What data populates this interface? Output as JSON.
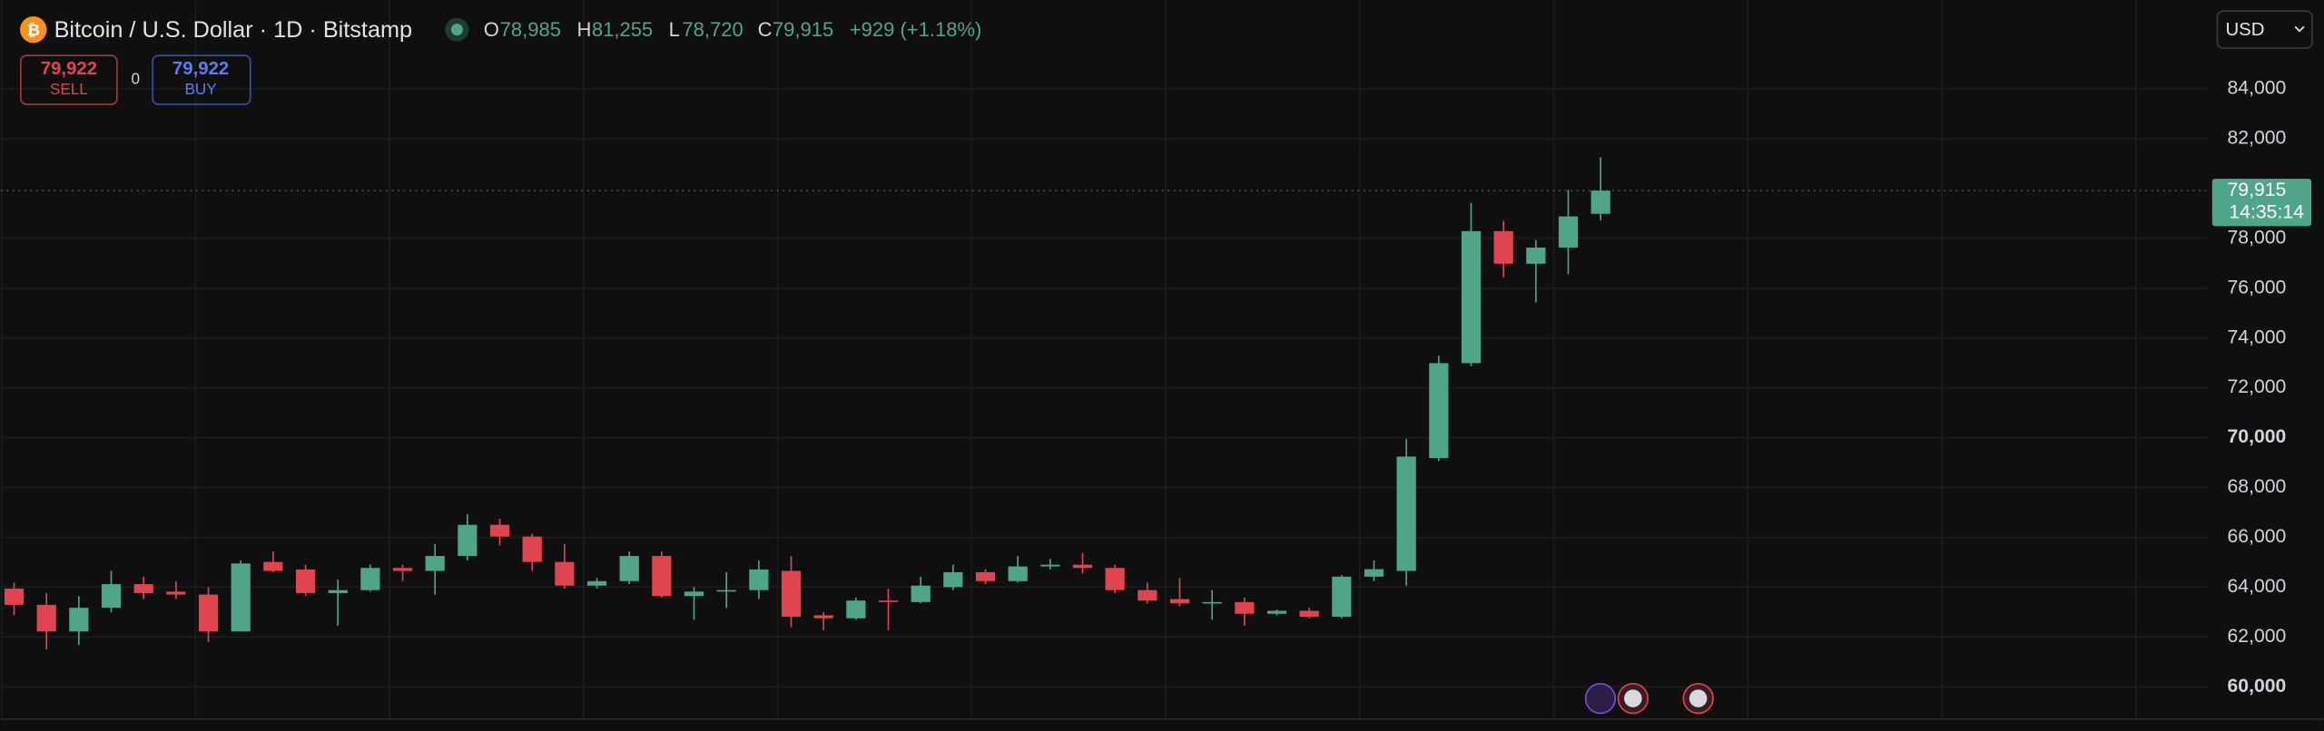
{
  "header": {
    "symbol": "Bitcoin / U.S. Dollar · 1D · Bitstamp",
    "o_label": "O",
    "open": "78,985",
    "h_label": "H",
    "high": "81,255",
    "l_label": "L",
    "low": "78,720",
    "c_label": "C",
    "close": "79,915",
    "change": "+929 (+1.18%)"
  },
  "trade": {
    "sell_price": "79,922",
    "sell": "SELL",
    "spread": "0",
    "buy_price": "79,922",
    "buy": "BUY"
  },
  "currency": "USD",
  "price_label": {
    "price": "79,915",
    "countdown": "14:35:14"
  },
  "chart_data": {
    "type": "candlestick",
    "up_color": "#4fa58a",
    "down_color": "#e0454f",
    "grid": true,
    "ylim": [
      58700,
      87270
    ],
    "yticks": [
      {
        "value": 60000,
        "label": "60,000"
      },
      {
        "value": 62000,
        "label": "62,000"
      },
      {
        "value": 64000,
        "label": "64,000"
      },
      {
        "value": 66000,
        "label": "66,000"
      },
      {
        "value": 68000,
        "label": "68,000"
      },
      {
        "value": 70000,
        "label": "70,000"
      },
      {
        "value": 72000,
        "label": "72,000"
      },
      {
        "value": 74000,
        "label": "74,000"
      },
      {
        "value": 76000,
        "label": "76,000"
      },
      {
        "value": 78000,
        "label": "78,000"
      },
      {
        "value": 82000,
        "label": "82,000"
      },
      {
        "value": 84000,
        "label": "84,000"
      }
    ],
    "open": [
      63940,
      63290,
      62220,
      63170,
      64120,
      63820,
      63700,
      62220,
      65010,
      64710,
      63760,
      63880,
      64770,
      64650,
      65250,
      66500,
      66030,
      65010,
      64060,
      64240,
      65250,
      63640,
      63820,
      63880,
      64650,
      62870,
      62750,
      63460,
      63400,
      64000,
      64600,
      64240,
      64830,
      64900,
      64770,
      63880,
      63520,
      63350,
      63400,
      62930,
      63050,
      62810,
      64420,
      64650,
      69180,
      72990,
      78290,
      76980,
      77630,
      78985
    ],
    "high": [
      64180,
      63760,
      63640,
      64650,
      64420,
      64240,
      64000,
      65070,
      65430,
      64900,
      64300,
      64900,
      64900,
      65730,
      66920,
      66740,
      66140,
      65730,
      64360,
      65430,
      65430,
      64000,
      64600,
      65070,
      65250,
      62990,
      63580,
      63940,
      64420,
      64900,
      64720,
      65250,
      65130,
      65370,
      64900,
      64180,
      64360,
      63880,
      63580,
      63110,
      63170,
      64480,
      65070,
      69950,
      73290,
      79420,
      78700,
      77930,
      79950,
      81255
    ],
    "low": [
      62870,
      61500,
      61680,
      62990,
      63520,
      63520,
      61800,
      62220,
      64600,
      63640,
      62450,
      63820,
      64240,
      63700,
      65070,
      65670,
      64650,
      63940,
      63940,
      64120,
      63580,
      62690,
      63170,
      63520,
      62390,
      62270,
      62690,
      62270,
      63350,
      63880,
      64120,
      64180,
      64710,
      64540,
      63760,
      63350,
      63230,
      62690,
      62450,
      62870,
      62750,
      62750,
      64240,
      64060,
      69060,
      72870,
      76440,
      75430,
      76560,
      78720
    ],
    "close": [
      63290,
      62220,
      63170,
      64120,
      63760,
      63700,
      62220,
      64950,
      64650,
      63760,
      63880,
      64770,
      64650,
      65250,
      66500,
      66030,
      65010,
      64060,
      64240,
      65250,
      63640,
      63820,
      63880,
      64710,
      62810,
      62750,
      63460,
      63400,
      64060,
      64600,
      64240,
      64830,
      64900,
      64770,
      63880,
      63460,
      63350,
      63400,
      62930,
      63050,
      62810,
      64420,
      64720,
      69240,
      72990,
      78290,
      76980,
      77630,
      78880,
      79915
    ]
  }
}
